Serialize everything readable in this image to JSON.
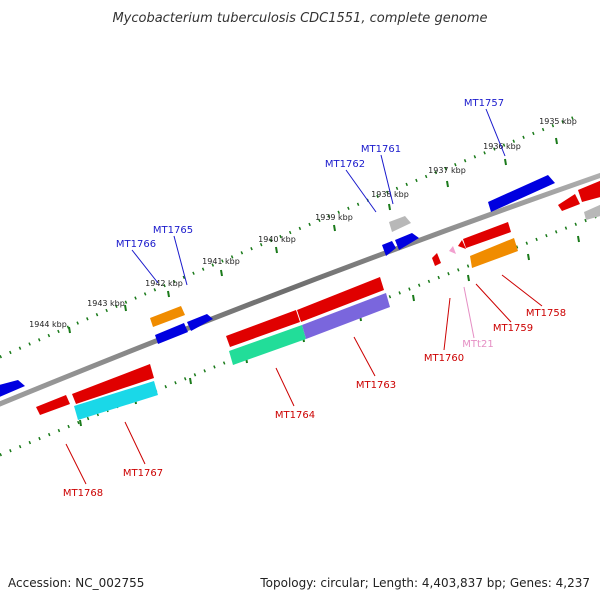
{
  "title": "Mycobacterium tuberculosis CDC1551, complete genome",
  "footer": {
    "accession": "Accession: NC_002755",
    "summary": "Topology: circular; Length: 4,403,837 bp; Genes: 4,237"
  },
  "ruler": {
    "labels": [
      "1944 kbp",
      "1943 kbp",
      "1942 kbp",
      "1941 kbp",
      "1940 kbp",
      "1939 kbp",
      "1938 kbp",
      "1937 kbp",
      "1936 kbp",
      "1935 kbp"
    ]
  },
  "genes": {
    "forward": [
      "MT1766",
      "MT1765",
      "MT1762",
      "MT1761",
      "MT1757"
    ],
    "reverse": [
      "MT1768",
      "MT1767",
      "MT1764",
      "MT1763",
      "MT1760",
      "MTt21",
      "MT1759",
      "MT1758"
    ]
  },
  "colors": {
    "forward_label": "#1a1acc",
    "reverse_label": "#cc0000",
    "trna_label": "#e58fc4",
    "backbone": "#8a8a8a",
    "ruler_tick": "#1a7a1a",
    "cds_red": "#e00000",
    "cds_blue": "#0000e0",
    "cds_orange": "#f08c00",
    "cds_gray": "#b8b8b8",
    "cds_cyan": "#1ad8e8",
    "cds_teal": "#22dd99",
    "cds_purple": "#7a66dd",
    "trna_pink": "#f2a0cf"
  }
}
